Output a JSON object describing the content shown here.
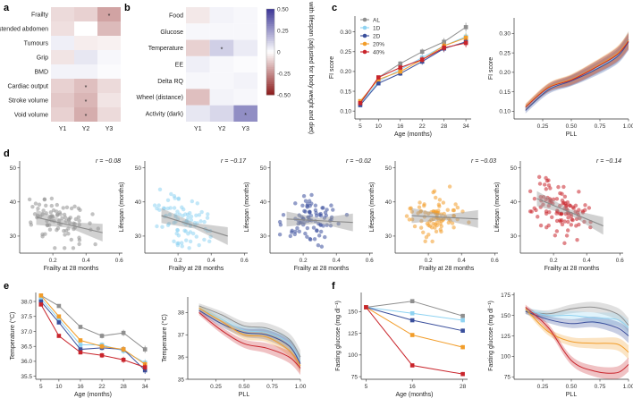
{
  "panel_labels": [
    "a",
    "b",
    "c",
    "d",
    "e",
    "f"
  ],
  "colors": {
    "AL": "#8f8f8f",
    "1D": "#8fd3f2",
    "2D": "#3a4f9c",
    "20%": "#f29d2a",
    "40%": "#c9242b",
    "neg": "#8b1a1a",
    "mid": "#ffffff",
    "pos": "#3b3596"
  },
  "colorbar": {
    "label": "Correlation with lifespan (adjusted for body weight and diet)",
    "ticks": [
      "0.50",
      "0.25",
      "0",
      "-0.25",
      "-0.50"
    ],
    "range": [
      -0.5,
      0.5
    ]
  },
  "chart_data": [
    {
      "id": "a",
      "type": "heatmap",
      "rows": [
        "Frailty",
        "Distended abdomen",
        "Tumours",
        "Grip",
        "BMD",
        "Cardiac output",
        "Stroke volume",
        "Void volume"
      ],
      "cols": [
        "Y1",
        "Y2",
        "Y3"
      ],
      "values": [
        [
          -0.08,
          -0.1,
          -0.2
        ],
        [
          -0.07,
          0.0,
          -0.15
        ],
        [
          0.04,
          -0.04,
          -0.03
        ],
        [
          -0.06,
          0.06,
          0.02
        ],
        [
          0.03,
          0.03,
          0.01
        ],
        [
          -0.1,
          -0.14,
          -0.08
        ],
        [
          -0.12,
          -0.16,
          -0.06
        ],
        [
          -0.1,
          -0.18,
          -0.08
        ]
      ],
      "sig": [
        [
          0,
          2
        ],
        [
          5,
          1
        ],
        [
          6,
          1
        ],
        [
          7,
          1
        ]
      ],
      "sig_label": "*"
    },
    {
      "id": "b",
      "type": "heatmap",
      "rows": [
        "Food",
        "Glucose",
        "Temperature",
        "EE",
        "Delta RQ",
        "Wheel (distance)",
        "Activity (dark)"
      ],
      "cols": [
        "Y1",
        "Y2",
        "Y3"
      ],
      "values": [
        [
          -0.05,
          0.03,
          0.02
        ],
        [
          0.02,
          0.02,
          0.02
        ],
        [
          -0.1,
          0.12,
          0.05
        ],
        [
          0.04,
          0.02,
          0.01
        ],
        [
          0.02,
          0.02,
          0.03
        ],
        [
          -0.14,
          0.03,
          0.02
        ],
        [
          0.06,
          0.1,
          0.28
        ]
      ],
      "sig": [
        [
          2,
          1
        ],
        [
          6,
          2
        ]
      ],
      "sig_label": "*"
    },
    {
      "id": "c1",
      "type": "line",
      "xlabel": "Age (months)",
      "ylabel": "FI score",
      "x": [
        5,
        10,
        16,
        22,
        28,
        34
      ],
      "xticks": [
        "5",
        "10",
        "16",
        "22",
        "28",
        "34"
      ],
      "ylim": [
        0.08,
        0.34
      ],
      "yticks": [
        "0.10",
        "0.15",
        "0.20",
        "0.25",
        "0.30"
      ],
      "legend": [
        "AL",
        "1D",
        "2D",
        "20%",
        "40%"
      ],
      "series": [
        {
          "name": "AL",
          "values": [
            0.118,
            0.185,
            0.22,
            0.25,
            0.275,
            0.312
          ]
        },
        {
          "name": "1D",
          "values": [
            0.118,
            0.175,
            0.205,
            0.235,
            0.265,
            0.288
          ]
        },
        {
          "name": "2D",
          "values": [
            0.115,
            0.17,
            0.195,
            0.225,
            0.258,
            0.275
          ]
        },
        {
          "name": "20%",
          "values": [
            0.125,
            0.18,
            0.2,
            0.23,
            0.265,
            0.285
          ]
        },
        {
          "name": "40%",
          "values": [
            0.12,
            0.185,
            0.21,
            0.23,
            0.26,
            0.272
          ]
        }
      ]
    },
    {
      "id": "c2",
      "type": "area",
      "xlabel": "PLL",
      "ylabel": "FI score",
      "xlim": [
        0,
        1
      ],
      "xticks": [
        "0.25",
        "0.50",
        "0.75",
        "1.00"
      ],
      "ylim": [
        0.08,
        0.34
      ],
      "yticks": [
        "0.10",
        "0.15",
        "0.20",
        "0.25",
        "0.30"
      ],
      "x": [
        0.1,
        0.3,
        0.5,
        0.7,
        0.9,
        1.0
      ],
      "series": [
        {
          "name": "AL",
          "values": [
            0.108,
            0.16,
            0.18,
            0.21,
            0.245,
            0.285
          ]
        },
        {
          "name": "1D",
          "values": [
            0.108,
            0.158,
            0.178,
            0.208,
            0.242,
            0.28
          ]
        },
        {
          "name": "2D",
          "values": [
            0.102,
            0.155,
            0.178,
            0.205,
            0.24,
            0.278
          ]
        },
        {
          "name": "20%",
          "values": [
            0.112,
            0.162,
            0.182,
            0.212,
            0.248,
            0.282
          ]
        },
        {
          "name": "40%",
          "values": [
            0.11,
            0.16,
            0.18,
            0.21,
            0.245,
            0.28
          ]
        }
      ]
    },
    {
      "id": "d",
      "type": "scatter",
      "xlabel": "Frailty at 28 months",
      "ylabel": "Lifespan (months)",
      "xlim": [
        0,
        0.62
      ],
      "xticks": [
        "0.2",
        "0.4",
        "0.6"
      ],
      "ylim": [
        25,
        52
      ],
      "yticks": [
        "30",
        "40",
        "50"
      ],
      "panels": [
        {
          "name": "AL",
          "r": "r = −0.08",
          "fit": [
            35.5,
            31.0
          ]
        },
        {
          "name": "1D",
          "r": "r = −0.17",
          "fit": [
            36.0,
            30.0
          ]
        },
        {
          "name": "2D",
          "r": "r = −0.02",
          "fit": [
            35.0,
            34.0
          ]
        },
        {
          "name": "20%",
          "r": "r = −0.03",
          "fit": [
            36.0,
            35.0
          ]
        },
        {
          "name": "40%",
          "r": "r = −0.14",
          "fit": [
            41.0,
            33.0
          ]
        }
      ]
    },
    {
      "id": "e1",
      "type": "line",
      "xlabel": "Age (months)",
      "ylabel": "Temperature (°C)",
      "x": [
        5,
        10,
        16,
        22,
        28,
        34
      ],
      "xticks": [
        "5",
        "10",
        "16",
        "22",
        "28",
        "34"
      ],
      "ylim": [
        35.4,
        38.3
      ],
      "yticks": [
        "35.5",
        "36.0",
        "36.5",
        "37.0",
        "37.5",
        "38.0"
      ],
      "series": [
        {
          "name": "AL",
          "values": [
            38.2,
            37.85,
            37.15,
            36.85,
            36.95,
            36.4
          ]
        },
        {
          "name": "1D",
          "values": [
            38.1,
            37.4,
            36.55,
            36.55,
            36.35,
            35.95
          ]
        },
        {
          "name": "2D",
          "values": [
            38.0,
            37.3,
            36.4,
            36.45,
            36.4,
            35.7
          ]
        },
        {
          "name": "20%",
          "values": [
            38.2,
            37.5,
            36.7,
            36.5,
            36.4,
            35.9
          ]
        },
        {
          "name": "40%",
          "values": [
            37.9,
            36.85,
            36.3,
            36.2,
            36.05,
            35.8
          ]
        }
      ]
    },
    {
      "id": "e2",
      "type": "area",
      "xlabel": "PLL",
      "ylabel": "Temperature (°C)",
      "xlim": [
        0,
        1
      ],
      "xticks": [
        "0.25",
        "0.50",
        "0.75",
        "1.00"
      ],
      "ylim": [
        35.0,
        38.7
      ],
      "yticks": [
        "35",
        "36",
        "37",
        "38"
      ],
      "x": [
        0.1,
        0.3,
        0.5,
        0.7,
        0.9,
        1.0
      ],
      "series": [
        {
          "name": "AL",
          "values": [
            38.3,
            37.9,
            37.4,
            37.3,
            36.8,
            36.0
          ]
        },
        {
          "name": "1D",
          "values": [
            38.2,
            37.7,
            37.2,
            37.1,
            36.6,
            35.8
          ]
        },
        {
          "name": "2D",
          "values": [
            38.1,
            37.5,
            37.1,
            37.0,
            36.5,
            35.7
          ]
        },
        {
          "name": "20%",
          "values": [
            38.2,
            37.6,
            37.0,
            36.9,
            36.3,
            35.6
          ]
        },
        {
          "name": "40%",
          "values": [
            38.0,
            37.2,
            36.6,
            36.4,
            36.0,
            35.5
          ]
        }
      ]
    },
    {
      "id": "f1",
      "type": "line",
      "xlabel": "Age (months)",
      "ylabel": "Fasting glucose (mg dl⁻¹)",
      "x": [
        5,
        16,
        28
      ],
      "xticks": [
        "5",
        "16",
        "28"
      ],
      "ylim": [
        72,
        172
      ],
      "yticks": [
        "75",
        "100",
        "125",
        "150"
      ],
      "series": [
        {
          "name": "AL",
          "values": [
            155,
            162,
            145
          ]
        },
        {
          "name": "1D",
          "values": [
            155,
            148,
            140
          ]
        },
        {
          "name": "2D",
          "values": [
            155,
            140,
            128
          ]
        },
        {
          "name": "20%",
          "values": [
            155,
            123,
            109
          ]
        },
        {
          "name": "40%",
          "values": [
            155,
            88,
            78
          ]
        }
      ]
    },
    {
      "id": "f2",
      "type": "area",
      "xlabel": "PLL",
      "ylabel": "Fasting glucose (mg dl⁻¹)",
      "xlim": [
        0,
        1
      ],
      "xticks": [
        "0.25",
        "0.50",
        "0.75",
        "1.00"
      ],
      "ylim": [
        72,
        178
      ],
      "yticks": [
        "75",
        "100",
        "125",
        "150",
        "175"
      ],
      "x": [
        0.1,
        0.3,
        0.5,
        0.7,
        0.9,
        1.0
      ],
      "series": [
        {
          "name": "AL",
          "values": [
            155,
            152,
            158,
            160,
            152,
            138
          ]
        },
        {
          "name": "1D",
          "values": [
            157,
            150,
            150,
            147,
            145,
            135
          ]
        },
        {
          "name": "2D",
          "values": [
            155,
            145,
            140,
            142,
            135,
            125
          ]
        },
        {
          "name": "20%",
          "values": [
            158,
            130,
            118,
            116,
            115,
            105
          ]
        },
        {
          "name": "40%",
          "values": [
            160,
            135,
            95,
            82,
            80,
            90
          ]
        }
      ]
    }
  ]
}
